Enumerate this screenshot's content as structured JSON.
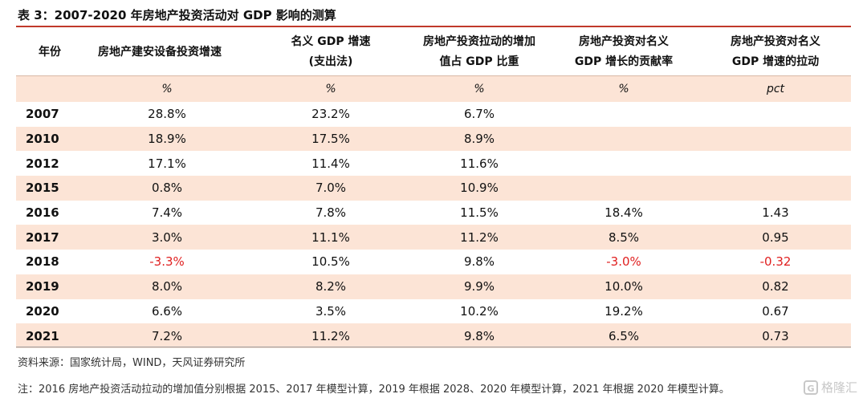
{
  "title": "表 3：2007-2020 年房地产投资活动对 GDP 影响的测算",
  "table": {
    "headers": [
      [
        "年份"
      ],
      [
        "房地产建安设备投资增速"
      ],
      [
        "名义 GDP 增速",
        "(支出法)"
      ],
      [
        "房地产投资拉动的增加",
        "值占 GDP 比重"
      ],
      [
        "房地产投资对名义",
        "GDP 增长的贡献率"
      ],
      [
        "房地产投资对名义",
        "GDP 增速的拉动"
      ]
    ],
    "units": [
      "",
      "%",
      "%",
      "%",
      "%",
      "pct"
    ],
    "rows": [
      [
        "2007",
        "28.8%",
        "23.2%",
        "6.7%",
        "",
        ""
      ],
      [
        "2010",
        "18.9%",
        "17.5%",
        "8.9%",
        "",
        ""
      ],
      [
        "2012",
        "17.1%",
        "11.4%",
        "11.6%",
        "",
        ""
      ],
      [
        "2015",
        "0.8%",
        "7.0%",
        "10.9%",
        "",
        ""
      ],
      [
        "2016",
        "7.4%",
        "7.8%",
        "11.5%",
        "18.4%",
        "1.43"
      ],
      [
        "2017",
        "3.0%",
        "11.1%",
        "11.2%",
        "8.5%",
        "0.95"
      ],
      [
        "2018",
        "-3.3%",
        "10.5%",
        "9.8%",
        "-3.0%",
        "-0.32"
      ],
      [
        "2019",
        "8.0%",
        "8.2%",
        "9.9%",
        "10.0%",
        "0.82"
      ],
      [
        "2020",
        "6.6%",
        "3.5%",
        "10.2%",
        "19.2%",
        "0.67"
      ],
      [
        "2021",
        "7.2%",
        "11.2%",
        "9.8%",
        "6.5%",
        "0.73"
      ]
    ]
  },
  "source": "资料来源：国家统计局，WIND，天风证券研究所",
  "note": "注：2016 房地产投资活动拉动的增加值分别根据 2015、2017 年模型计算，2019 年根据 2028、2020 年模型计算，2021 年根据 2020 年模型计算。",
  "watermark": {
    "logo": "G",
    "text": "格隆汇"
  },
  "colors": {
    "band": "#fce4d6",
    "negative": "#e02020",
    "title_rule": "#c0392b"
  }
}
